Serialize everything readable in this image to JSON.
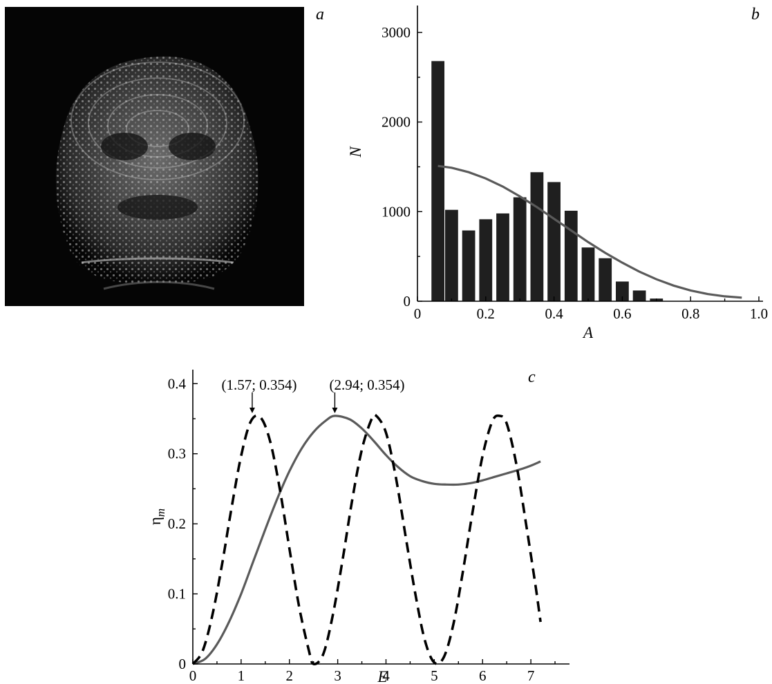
{
  "panels": {
    "a": {
      "letter": "a"
    },
    "b": {
      "letter": "b"
    },
    "c": {
      "letter": "c"
    }
  },
  "chart_data": [
    {
      "panel": "b",
      "type": "bar",
      "xlabel": "A",
      "ylabel": "N",
      "xlim": [
        0,
        1.0
      ],
      "ylim": [
        0,
        3300
      ],
      "xticks": [
        0,
        0.2,
        0.4,
        0.6,
        0.8,
        1.0
      ],
      "xtick_labels": [
        "0",
        "0.2",
        "0.4",
        "0.6",
        "0.8",
        "1.0"
      ],
      "yticks": [
        0,
        1000,
        2000,
        3000
      ],
      "ytick_labels": [
        "0",
        "1000",
        "2000",
        "3000"
      ],
      "bar_width": 0.038,
      "x": [
        0.06,
        0.1,
        0.15,
        0.2,
        0.25,
        0.3,
        0.35,
        0.4,
        0.45,
        0.5,
        0.55,
        0.6,
        0.65,
        0.7
      ],
      "values": [
        2680,
        1020,
        790,
        915,
        980,
        1160,
        1440,
        1330,
        1010,
        600,
        480,
        220,
        120,
        30
      ],
      "curve": {
        "color": "#5a5a5a",
        "x": [
          0.06,
          0.1,
          0.15,
          0.2,
          0.25,
          0.3,
          0.35,
          0.4,
          0.45,
          0.5,
          0.55,
          0.6,
          0.65,
          0.7,
          0.75,
          0.8,
          0.85,
          0.9,
          0.95
        ],
        "y": [
          1510,
          1490,
          1440,
          1370,
          1280,
          1170,
          1050,
          920,
          790,
          660,
          540,
          430,
          330,
          245,
          175,
          120,
          80,
          55,
          40
        ]
      },
      "grid": false,
      "legend": "none"
    },
    {
      "panel": "c",
      "type": "line",
      "xlabel": "E",
      "ylabel": "η",
      "ylabel_sub": "m",
      "xlim": [
        0,
        7.8
      ],
      "ylim": [
        0,
        0.42
      ],
      "xticks": [
        0,
        1,
        2,
        3,
        4,
        5,
        6,
        7
      ],
      "xtick_labels": [
        "0",
        "1",
        "2",
        "3",
        "4",
        "5",
        "6",
        "7"
      ],
      "yticks": [
        0,
        0.1,
        0.2,
        0.3,
        0.4
      ],
      "ytick_labels": [
        "0",
        "0.1",
        "0.2",
        "0.3",
        "0.4"
      ],
      "series": [
        {
          "style": "solid",
          "color": "#5a5a5a",
          "x": [
            0,
            0.25,
            0.5,
            0.75,
            1.0,
            1.25,
            1.5,
            1.75,
            2.0,
            2.25,
            2.5,
            2.75,
            2.94,
            3.25,
            3.5,
            3.75,
            4.0,
            4.25,
            4.5,
            4.75,
            5.0,
            5.25,
            5.5,
            5.75,
            6.0,
            6.25,
            6.5,
            6.75,
            7.0,
            7.2
          ],
          "y": [
            0,
            0.007,
            0.028,
            0.06,
            0.1,
            0.146,
            0.192,
            0.236,
            0.275,
            0.307,
            0.331,
            0.347,
            0.354,
            0.349,
            0.336,
            0.318,
            0.298,
            0.281,
            0.268,
            0.261,
            0.257,
            0.256,
            0.256,
            0.258,
            0.262,
            0.267,
            0.272,
            0.277,
            0.283,
            0.289
          ]
        },
        {
          "style": "dashed",
          "color": "#000000",
          "x": [
            0,
            0.2,
            0.4,
            0.6,
            0.8,
            1.0,
            1.2,
            1.4,
            1.6,
            1.8,
            2.0,
            2.2,
            2.4,
            2.5,
            2.7,
            2.9,
            3.1,
            3.3,
            3.5,
            3.7,
            3.8,
            4.0,
            4.2,
            4.4,
            4.6,
            4.8,
            5.0,
            5.2,
            5.4,
            5.6,
            5.8,
            6.0,
            6.2,
            6.35,
            6.5,
            6.7,
            6.9,
            7.1,
            7.2
          ],
          "y": [
            0,
            0.018,
            0.068,
            0.14,
            0.222,
            0.297,
            0.346,
            0.352,
            0.318,
            0.25,
            0.165,
            0.082,
            0.02,
            0.0,
            0.014,
            0.07,
            0.148,
            0.234,
            0.306,
            0.349,
            0.354,
            0.33,
            0.268,
            0.185,
            0.103,
            0.035,
            0.002,
            0.01,
            0.058,
            0.135,
            0.22,
            0.297,
            0.346,
            0.354,
            0.343,
            0.285,
            0.2,
            0.11,
            0.06
          ]
        }
      ],
      "annotations": [
        {
          "text": "(1.57; 0.354)",
          "x": 1.57,
          "y": 0.354
        },
        {
          "text": "(2.94; 0.354)",
          "x": 2.94,
          "y": 0.354
        }
      ],
      "grid": false,
      "legend": "none"
    }
  ]
}
